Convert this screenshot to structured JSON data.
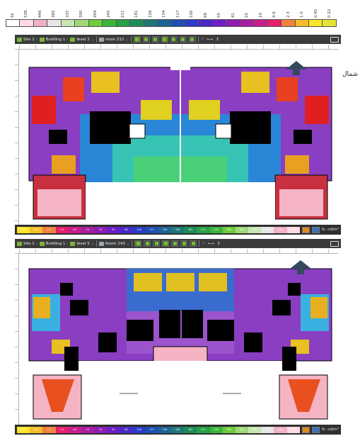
{
  "legend": {
    "labels": [
      "5k",
      "538",
      "446",
      "385",
      "337",
      "300",
      "269",
      "245",
      "211",
      "181",
      "156",
      "134",
      "117",
      "100",
      "68",
      "55",
      "41",
      "22",
      "10",
      "4.6",
      "2.3",
      "1.0",
      "0.45",
      "0.22"
    ],
    "colors": [
      "#ffffff",
      "#ffd9e5",
      "#f0b0c8",
      "#e6e6e6",
      "#c8e6b4",
      "#a0d878",
      "#6ccc3c",
      "#3cb43c",
      "#28a046",
      "#1e8c5a",
      "#1e7878",
      "#1e6496",
      "#1e50b4",
      "#2a3cc8",
      "#4b28c8",
      "#6e1ec8",
      "#8c1eb4",
      "#aa1ea0",
      "#c81e8c",
      "#e61e6e",
      "#f0823c",
      "#f5be28",
      "#fae628",
      "#e6e632"
    ]
  },
  "north": {
    "label": "شمال",
    "icon": "north-arrow-icon"
  },
  "panels": [
    {
      "toolbar": {
        "site": "Site 1",
        "building": "Building 1",
        "level": "level 2",
        "room": "room 212"
      },
      "scale_values": [
        "0.22",
        "0.45",
        "1.0",
        "2.3",
        "4.6",
        "10",
        "22",
        "55",
        "68",
        "100",
        "117",
        "134",
        "156",
        "181",
        "211",
        "245",
        "269",
        "300",
        "337",
        "385",
        "446",
        "538"
      ],
      "units": "cd/m²",
      "fx": "fx"
    },
    {
      "toolbar": {
        "site": "Site 1",
        "building": "Building 1",
        "level": "level 5",
        "room": "Room 143"
      },
      "scale_values": [
        "0.22",
        "0.45",
        "1.0",
        "2.3",
        "4.6",
        "10",
        "22",
        "55",
        "68",
        "100",
        "117",
        "134",
        "156",
        "181",
        "211",
        "245",
        "269",
        "300",
        "337",
        "385",
        "446",
        "538"
      ],
      "units": "cd/m²",
      "fx": "fx"
    }
  ]
}
